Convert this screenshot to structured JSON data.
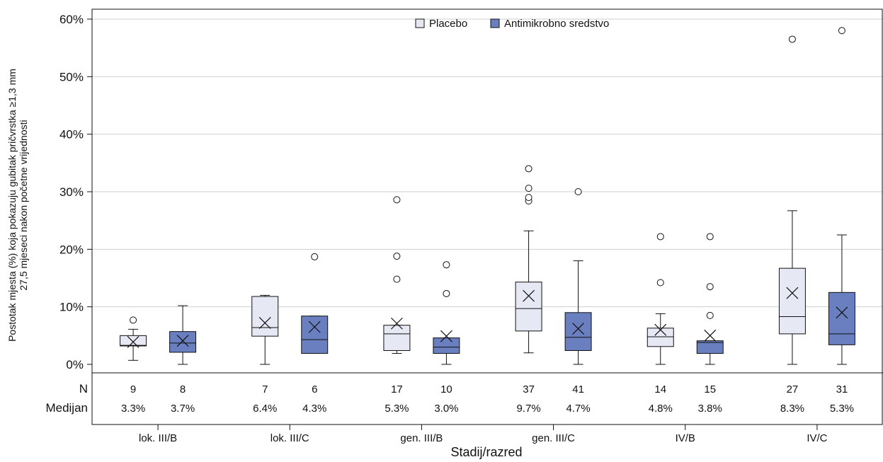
{
  "chart_data": {
    "type": "box",
    "xlabel": "Stadij/razred",
    "ylabel_line1": "Postotak mjesta (%) koja pokazuju gubitak pričvrstka ≥1,3 mm",
    "ylabel_line2": "27,5 mjeseci nakon početne vrijednosti",
    "ylim": [
      0,
      60
    ],
    "yticks": [
      "0%",
      "10%",
      "20%",
      "30%",
      "40%",
      "50%",
      "60%"
    ],
    "grid": true,
    "legend_position": "top-center",
    "row_labels": {
      "n": "N",
      "median": "Medijan"
    },
    "categories": [
      "lok. III/B",
      "lok. III/C",
      "gen. III/B",
      "gen. III/C",
      "IV/B",
      "IV/C"
    ],
    "series": [
      {
        "name": "Placebo",
        "color": "#e6e8f4",
        "boxes": [
          {
            "n": "9",
            "median_label": "3.3%",
            "whisker_low": 0.7,
            "q1": 3.2,
            "median": 3.3,
            "q3": 5.0,
            "whisker_high": 6.1,
            "mean": 3.9,
            "outliers": [
              7.7
            ]
          },
          {
            "n": "7",
            "median_label": "6.4%",
            "whisker_low": 0.0,
            "q1": 4.9,
            "median": 6.4,
            "q3": 11.8,
            "whisker_high": 12.0,
            "mean": 7.2,
            "outliers": []
          },
          {
            "n": "17",
            "median_label": "5.3%",
            "whisker_low": 1.9,
            "q1": 2.4,
            "median": 5.3,
            "q3": 6.8,
            "whisker_high": 6.8,
            "mean": 7.1,
            "outliers": [
              14.8,
              18.8,
              28.6
            ]
          },
          {
            "n": "37",
            "median_label": "9.7%",
            "whisker_low": 2.0,
            "q1": 5.8,
            "median": 9.7,
            "q3": 14.3,
            "whisker_high": 23.2,
            "mean": 11.9,
            "outliers": [
              28.4,
              29.0,
              30.6,
              34.0
            ]
          },
          {
            "n": "14",
            "median_label": "4.8%",
            "whisker_low": 0.0,
            "q1": 3.1,
            "median": 4.8,
            "q3": 6.3,
            "whisker_high": 8.8,
            "mean": 6.0,
            "outliers": [
              14.2,
              22.2
            ]
          },
          {
            "n": "27",
            "median_label": "8.3%",
            "whisker_low": 0.0,
            "q1": 5.3,
            "median": 8.3,
            "q3": 16.7,
            "whisker_high": 26.7,
            "mean": 12.4,
            "outliers": [
              56.5
            ]
          }
        ]
      },
      {
        "name": "Antimikrobno sredstvo",
        "color": "#6a7fbf",
        "boxes": [
          {
            "n": "8",
            "median_label": "3.7%",
            "whisker_low": 0.0,
            "q1": 2.1,
            "median": 3.7,
            "q3": 5.7,
            "whisker_high": 10.2,
            "mean": 4.1,
            "outliers": []
          },
          {
            "n": "6",
            "median_label": "4.3%",
            "whisker_low": 1.9,
            "q1": 1.9,
            "median": 4.3,
            "q3": 8.4,
            "whisker_high": 8.4,
            "mean": 6.5,
            "outliers": [
              18.7
            ]
          },
          {
            "n": "10",
            "median_label": "3.0%",
            "whisker_low": 0.0,
            "q1": 1.9,
            "median": 3.0,
            "q3": 4.6,
            "whisker_high": 4.6,
            "mean": 4.9,
            "outliers": [
              12.3,
              17.3
            ]
          },
          {
            "n": "41",
            "median_label": "4.7%",
            "whisker_low": 0.0,
            "q1": 2.4,
            "median": 4.7,
            "q3": 9.0,
            "whisker_high": 18.0,
            "mean": 6.2,
            "outliers": [
              30.0
            ]
          },
          {
            "n": "15",
            "median_label": "3.8%",
            "whisker_low": 0.0,
            "q1": 1.9,
            "median": 3.8,
            "q3": 4.1,
            "whisker_high": 4.1,
            "mean": 5.0,
            "outliers": [
              8.5,
              13.5,
              22.2
            ]
          },
          {
            "n": "31",
            "median_label": "5.3%",
            "whisker_low": 0.0,
            "q1": 3.4,
            "median": 5.3,
            "q3": 12.5,
            "whisker_high": 22.5,
            "mean": 9.0,
            "outliers": [
              58.0
            ]
          }
        ]
      }
    ]
  }
}
